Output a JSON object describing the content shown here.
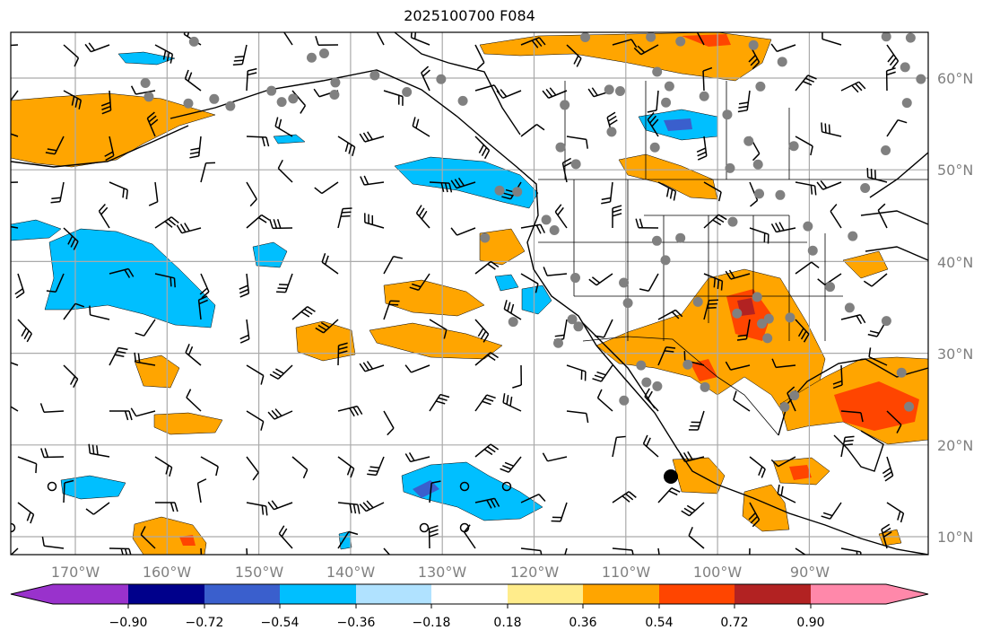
{
  "title": "2025100700 F084",
  "longitude_labels": [
    "170°W",
    "160°W",
    "150°W",
    "140°W",
    "130°W",
    "120°W",
    "110°W",
    "100°W",
    "90°W"
  ],
  "latitude_labels": [
    "60°N",
    "50°N",
    "40°N",
    "30°N",
    "20°N",
    "10°N"
  ],
  "colorbar": {
    "ticks": [
      "−0.90",
      "−0.72",
      "−0.54",
      "−0.36",
      "−0.18",
      "0.18",
      "0.36",
      "0.54",
      "0.72",
      "0.90"
    ],
    "colors": [
      "#9932cc",
      "#00008b",
      "#3a5fcd",
      "#00bfff",
      "#b0e2ff",
      "#ffffff",
      "#ffec8b",
      "#ffa500",
      "#ff4500",
      "#b22222",
      "#ff88aa"
    ]
  }
}
